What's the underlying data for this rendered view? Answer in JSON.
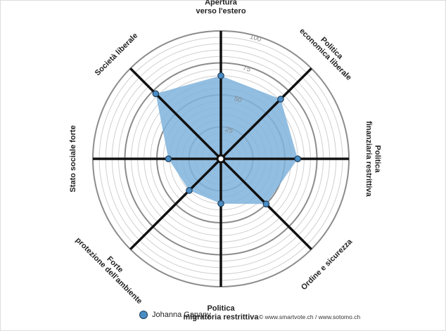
{
  "chart_data": {
    "type": "radar",
    "axes": [
      {
        "lines": [
          "Apertura",
          "verso l'estero"
        ]
      },
      {
        "lines": [
          "Politica",
          "economica liberale"
        ]
      },
      {
        "lines": [
          "Politica",
          "finanziaria restrittiva"
        ]
      },
      {
        "lines": [
          "Ordine e sicurezza"
        ]
      },
      {
        "lines": [
          "Politica",
          "migratoria restrittiva"
        ]
      },
      {
        "lines": [
          "Forte",
          "protezione dell'ambiente"
        ]
      },
      {
        "lines": [
          "Stato sociale forte"
        ]
      },
      {
        "lines": [
          "Società liberale"
        ]
      }
    ],
    "range": [
      0,
      100
    ],
    "tick_labels": [
      "25",
      "50",
      "75",
      "100"
    ],
    "series": [
      {
        "name": "Johanna Gapany",
        "values": [
          65,
          66,
          60,
          50,
          35,
          35,
          41,
          72
        ]
      }
    ],
    "colors": {
      "fill": "#7fb3dc",
      "marker": "#4a8cc4",
      "marker_edge": "#1f3f5a",
      "axis": "#111111",
      "ring": "#8c8c8c"
    },
    "legend_position": "bottom-left"
  },
  "credit": "© www.smartvote.ch / www.sotomo.ch"
}
